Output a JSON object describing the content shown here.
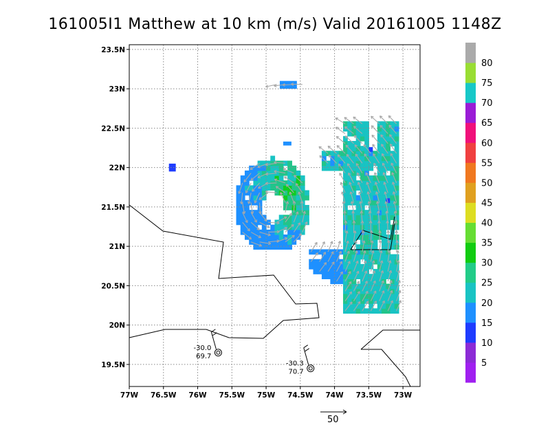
{
  "title": "161005I1 Matthew at 10 km (m/s) Valid 20161005 1148Z",
  "chart_data": {
    "type": "heatmap",
    "subtype": "wind-speed field with wind vectors",
    "units": "m/s",
    "xlim": [
      -77,
      -72.75
    ],
    "ylim": [
      19.22,
      23.56
    ],
    "x_ticks": [
      {
        "value": -77,
        "label": "77W"
      },
      {
        "value": -76.5,
        "label": "76.5W"
      },
      {
        "value": -76,
        "label": "76W"
      },
      {
        "value": -75.5,
        "label": "75.5W"
      },
      {
        "value": -75,
        "label": "75W"
      },
      {
        "value": -74.5,
        "label": "74.5W"
      },
      {
        "value": -74,
        "label": "74W"
      },
      {
        "value": -73.5,
        "label": "73.5W"
      },
      {
        "value": -73,
        "label": "73W"
      }
    ],
    "y_ticks": [
      {
        "value": 19.5,
        "label": "19.5N"
      },
      {
        "value": 20,
        "label": "20N"
      },
      {
        "value": 20.5,
        "label": "20.5N"
      },
      {
        "value": 21,
        "label": "21N"
      },
      {
        "value": 21.5,
        "label": "21.5N"
      },
      {
        "value": 22,
        "label": "22N"
      },
      {
        "value": 22.5,
        "label": "22.5N"
      },
      {
        "value": 23,
        "label": "23N"
      },
      {
        "value": 23.5,
        "label": "23.5N"
      }
    ],
    "grid": true,
    "grid_style": "dotted",
    "colorbar": {
      "labels": [
        "5",
        "10",
        "15",
        "20",
        "25",
        "30",
        "35",
        "40",
        "45",
        "50",
        "55",
        "60",
        "65",
        "70",
        "75",
        "80"
      ],
      "colors": [
        "#a020f0",
        "#8c2bd6",
        "#1e3cff",
        "#1e90ff",
        "#19c3c3",
        "#22cc88",
        "#11cc11",
        "#66dd33",
        "#dddd22",
        "#e0a020",
        "#f07820",
        "#f04040",
        "#f0107a",
        "#9a1cd6",
        "#17c8c8",
        "#99dd33",
        "#aaaaaa"
      ]
    },
    "storm": {
      "center": [
        -74.9,
        21.52
      ],
      "eye_radius_deg": 0.17,
      "outer_radius_deg": 0.6
    },
    "stations": [
      {
        "lon": -75.7,
        "lat": 19.65,
        "value1": "-30.0",
        "value2": "69.7"
      },
      {
        "lon": -74.35,
        "lat": 19.45,
        "value1": "-30.3",
        "value2": "70.7"
      }
    ],
    "reference_vector": {
      "label": "50"
    }
  }
}
